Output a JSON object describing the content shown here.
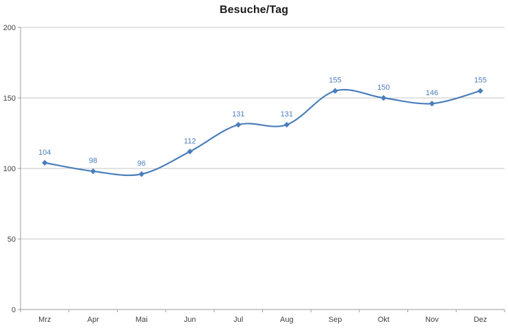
{
  "chart_data": {
    "type": "line",
    "title": "Besuche/Tag",
    "categories": [
      "Mrz",
      "Apr",
      "Mai",
      "Jun",
      "Jul",
      "Aug",
      "Sep",
      "Okt",
      "Nov",
      "Dez"
    ],
    "series": [
      {
        "name": "Besuche/Tag",
        "values": [
          104,
          98,
          96,
          112,
          131,
          131,
          155,
          150,
          146,
          155
        ]
      }
    ],
    "xlabel": "",
    "ylabel": "",
    "ylim": [
      0,
      200
    ],
    "yticks": [
      0,
      50,
      100,
      150,
      200
    ],
    "smooth": true,
    "grid": true,
    "legend_position": "none",
    "data_labels_shown": true,
    "colors": {
      "series": "#4a7ebb",
      "data_label": "#4a7ebb",
      "gridline": "#c6c6c6",
      "axis": "#9b9b9b",
      "tick_label": "#404040"
    }
  }
}
